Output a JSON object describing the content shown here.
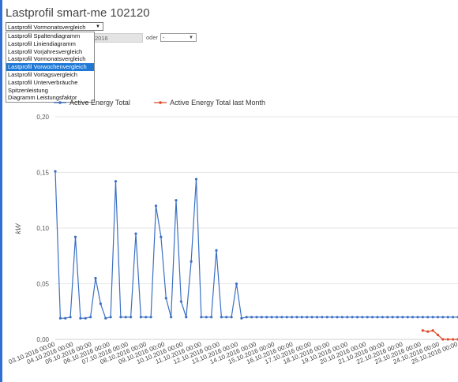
{
  "title": "Lastprofil smart-me 102120",
  "view_select": {
    "value": "Lastprofil Vormonatsvergleich",
    "options": [
      "Lastprofil Spaltendiagramm",
      "Lastprofil Liniendiagramm",
      "Lastprofil Vorjahresvergleich",
      "Lastprofil Vormonatsvergleich",
      "Lastprofil Vorwochenvergleich",
      "Lastprofil Vortagsvergleich",
      "Lastprofil Unterverbräuche",
      "Spitzenleistung",
      "Diagramm Leistungsfaktor"
    ],
    "highlighted": "Lastprofil Vorwochenvergleich"
  },
  "date_field": {
    "value": "2016"
  },
  "oder": {
    "label": "oder",
    "value": "-"
  },
  "colors": {
    "series_current": "#3a6fc4",
    "series_last_month": "#e0482a",
    "accent": "#2f6fd6"
  },
  "chart_data": {
    "type": "line",
    "ylabel": "kW",
    "ylim": [
      0,
      0.2
    ],
    "yticks": [
      "0,00",
      "0,05",
      "0,10",
      "0,15",
      "0,20"
    ],
    "xticks": [
      "03.10.2016 00:00",
      "04.10.2016 00:00",
      "05.10.2016 00:00",
      "06.10.2016 00:00",
      "07.10.2016 00:00",
      "08.10.2016 00:00",
      "09.10.2016 00:00",
      "10.10.2016 00:00",
      "11.10.2016 00:00",
      "12.10.2016 00:00",
      "13.10.2016 00:00",
      "14.10.2016 00:00",
      "15.10.2016 00:00",
      "16.10.2016 00:00",
      "17.10.2016 00:00",
      "18.10.2016 00:00",
      "19.10.2016 00:00",
      "20.10.2016 00:00",
      "21.10.2016 00:00",
      "22.10.2016 00:00",
      "23.10.2016 00:00",
      "24.10.2016 00:00",
      "25.10.2016 00:00"
    ],
    "legend_placement": "top-left",
    "series": [
      {
        "name": "Active Energy Total",
        "values": [
          0.151,
          0.019,
          0.019,
          0.02,
          0.092,
          0.019,
          0.019,
          0.02,
          0.055,
          0.032,
          0.019,
          0.02,
          0.142,
          0.02,
          0.02,
          0.02,
          0.095,
          0.02,
          0.02,
          0.02,
          0.12,
          0.092,
          0.037,
          0.02,
          0.125,
          0.034,
          0.02,
          0.07,
          0.144,
          0.02,
          0.02,
          0.02,
          0.08,
          0.02,
          0.02,
          0.02,
          0.05,
          0.019,
          0.02,
          0.02,
          0.02,
          0.02,
          0.02,
          0.02,
          0.02,
          0.02,
          0.02,
          0.02,
          0.02,
          0.02,
          0.02,
          0.02,
          0.02,
          0.02,
          0.02,
          0.02,
          0.02,
          0.02,
          0.02,
          0.02,
          0.02,
          0.02,
          0.02,
          0.02,
          0.02,
          0.02,
          0.02,
          0.02,
          0.02,
          0.02,
          0.02,
          0.02,
          0.02,
          0.02,
          0.02,
          0.02,
          0.02,
          0.02,
          0.02,
          0.02,
          0.02
        ]
      },
      {
        "name": "Active Energy Total last Month",
        "values": [
          null,
          null,
          null,
          null,
          null,
          null,
          null,
          null,
          null,
          null,
          null,
          null,
          null,
          null,
          null,
          null,
          null,
          null,
          null,
          null,
          null,
          null,
          null,
          null,
          null,
          null,
          null,
          null,
          null,
          null,
          null,
          null,
          null,
          null,
          null,
          null,
          null,
          null,
          null,
          null,
          null,
          null,
          null,
          null,
          null,
          null,
          null,
          null,
          null,
          null,
          null,
          null,
          null,
          null,
          null,
          null,
          null,
          null,
          null,
          null,
          null,
          null,
          null,
          null,
          null,
          null,
          null,
          null,
          null,
          null,
          null,
          null,
          null,
          0.008,
          0.007,
          0.008,
          0.004,
          0.0,
          0.0,
          0.0,
          0.0
        ]
      }
    ]
  }
}
